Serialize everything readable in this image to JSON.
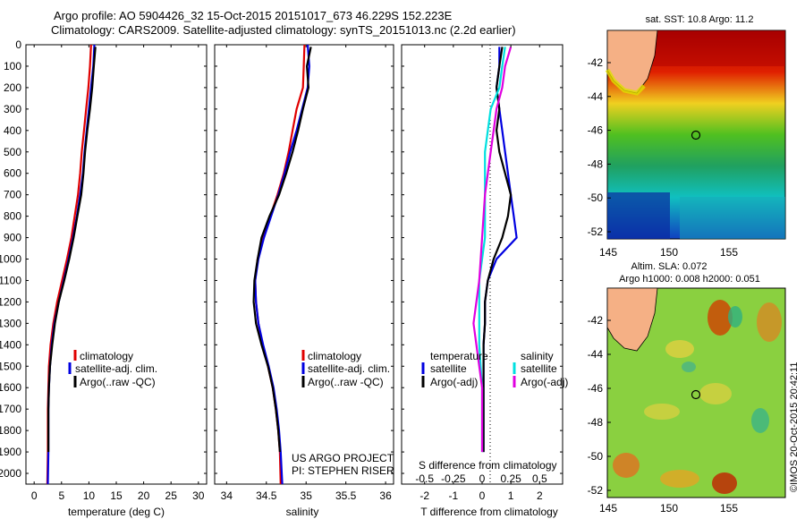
{
  "header": {
    "line1": "Argo profile: AO 5904426_32 15-Oct-2015 20151017_673 46.229S 152.223E",
    "line2": "Climatology: CARS2009. Satellite-adjusted climatology: synTS_20151013.nc (2.2d earlier)"
  },
  "depth_ticks": [
    "0",
    "100",
    "200",
    "300",
    "400",
    "500",
    "600",
    "700",
    "800",
    "900",
    "1000",
    "1100",
    "1200",
    "1300",
    "1400",
    "1500",
    "1600",
    "1700",
    "1800",
    "1900",
    "2000"
  ],
  "panels": {
    "temperature": {
      "xlabel": "temperature (deg C)",
      "xticks": [
        "0",
        "5",
        "10",
        "15",
        "20",
        "25",
        "30"
      ],
      "legend": [
        "climatology",
        "satellite-adj. clim.",
        "Argo(..raw -QC)"
      ]
    },
    "salinity": {
      "xlabel": "salinity",
      "xticks": [
        "34",
        "34.5",
        "35",
        "35.5",
        "36"
      ],
      "legend": [
        "climatology",
        "satellite-adj. clim.",
        "Argo(..raw -QC)"
      ],
      "credit1": "US ARGO PROJECT",
      "credit2": "PI: STEPHEN RISER"
    },
    "difference": {
      "xlabel": "T difference from climatology",
      "top_label": "S difference from climatology",
      "xticks": [
        "-2",
        "-1",
        "0",
        "1",
        "2"
      ],
      "sticks": [
        "-0.5",
        "-0.25",
        "0",
        "0.25",
        "0.5"
      ],
      "legend_t_title": "temperature",
      "legend_s_title": "salinity",
      "legend_t": [
        "satellite",
        "Argo(-adj)"
      ],
      "legend_s": [
        "satellite",
        "Argo(-adj)"
      ]
    }
  },
  "maps": {
    "sst_title": "sat. SST: 10.8 Argo: 11.2",
    "sla_title1": "Altim. SLA: 0.072",
    "sla_title2": "Argo h1000: 0.008 h2000: 0.051",
    "lat_ticks": [
      "-42",
      "-44",
      "-46",
      "-48",
      "-50",
      "-52"
    ],
    "lon_ticks": [
      "145",
      "150",
      "155"
    ],
    "stamp": "©IMOS 20-Oct-2015 20:42:11"
  },
  "colors": {
    "climatology": "#e00000",
    "satellite_adj": "#0000e0",
    "argo": "#000000",
    "salinity_sat": "#00e0e0",
    "salinity_argo": "#e000e0"
  },
  "chart_data": [
    {
      "type": "line",
      "xlabel": "temperature (deg C)",
      "ylabel": "",
      "xlim": [
        -1.5,
        31.5
      ],
      "ylim": [
        2050,
        0
      ],
      "series": [
        {
          "name": "climatology",
          "x": [
            10.4,
            10.2,
            9.9,
            9.5,
            9.1,
            8.7,
            8.4,
            8.0,
            7.4,
            6.8,
            6.0,
            5.1,
            4.2,
            3.5,
            3.0,
            2.7,
            2.6,
            2.5,
            2.5,
            2.5,
            2.4
          ],
          "y": [
            0,
            100,
            200,
            300,
            400,
            500,
            600,
            700,
            800,
            900,
            1000,
            1100,
            1200,
            1300,
            1400,
            1500,
            1600,
            1700,
            1800,
            1900,
            2050
          ]
        },
        {
          "name": "satellite-adj. clim.",
          "x": [
            11.0,
            10.8,
            10.4,
            10.0,
            9.6,
            9.2,
            8.9,
            8.4,
            7.8,
            7.1,
            6.3,
            5.4,
            4.5,
            3.7,
            3.2,
            2.9,
            2.7,
            2.6,
            2.6,
            2.6,
            2.5
          ],
          "y": [
            0,
            100,
            200,
            300,
            400,
            500,
            600,
            700,
            800,
            900,
            1000,
            1100,
            1200,
            1300,
            1400,
            1500,
            1600,
            1700,
            1800,
            1900,
            2050
          ]
        },
        {
          "name": "Argo(..raw -QC)",
          "x": [
            11.2,
            10.9,
            10.6,
            10.2,
            9.7,
            9.3,
            9.0,
            8.6,
            7.9,
            7.2,
            6.4,
            5.5,
            4.5,
            3.8,
            3.3,
            2.9,
            2.7,
            2.6,
            2.6,
            2.6
          ],
          "y": [
            10,
            100,
            200,
            300,
            400,
            500,
            600,
            700,
            800,
            900,
            1000,
            1100,
            1200,
            1300,
            1400,
            1500,
            1600,
            1700,
            1800,
            1900
          ]
        }
      ]
    },
    {
      "type": "line",
      "xlabel": "salinity",
      "ylabel": "",
      "xlim": [
        33.85,
        36.1
      ],
      "ylim": [
        2050,
        0
      ],
      "series": [
        {
          "name": "climatology",
          "x": [
            34.98,
            34.97,
            34.96,
            34.88,
            34.83,
            34.78,
            34.72,
            34.64,
            34.55,
            34.46,
            34.39,
            34.36,
            34.37,
            34.4,
            34.45,
            34.52,
            34.58,
            34.62,
            34.65,
            34.67,
            34.68
          ],
          "y": [
            0,
            100,
            200,
            300,
            400,
            500,
            600,
            700,
            800,
            900,
            1000,
            1100,
            1200,
            1300,
            1400,
            1500,
            1600,
            1700,
            1800,
            1900,
            2050
          ]
        },
        {
          "name": "satellite-adj. clim.",
          "x": [
            35.02,
            35.04,
            35.02,
            34.95,
            34.88,
            34.8,
            34.73,
            34.65,
            34.56,
            34.47,
            34.4,
            34.36,
            34.37,
            34.4,
            34.46,
            34.53,
            34.59,
            34.63,
            34.66,
            34.68,
            34.7
          ],
          "y": [
            0,
            100,
            200,
            300,
            400,
            500,
            600,
            700,
            800,
            900,
            1000,
            1100,
            1200,
            1300,
            1400,
            1500,
            1600,
            1700,
            1800,
            1900,
            2050
          ]
        },
        {
          "name": "Argo(..raw -QC)",
          "x": [
            35.06,
            35.01,
            35.03,
            34.96,
            34.9,
            34.83,
            34.75,
            34.66,
            34.54,
            34.44,
            34.39,
            34.35,
            34.34,
            34.37,
            34.44,
            34.52,
            34.58,
            34.62,
            34.65,
            34.67
          ],
          "y": [
            10,
            100,
            200,
            300,
            400,
            500,
            600,
            700,
            800,
            900,
            1000,
            1100,
            1200,
            1300,
            1400,
            1500,
            1600,
            1700,
            1800,
            1900
          ]
        }
      ]
    },
    {
      "type": "line",
      "xlabel": "T difference from climatology",
      "ylabel": "",
      "xlim": [
        -2.8,
        2.8
      ],
      "ylim": [
        2050,
        0
      ],
      "series": [
        {
          "name": "temperature satellite",
          "x": [
            0.6,
            0.6,
            0.5,
            0.6,
            0.7,
            0.8,
            0.9,
            1.0,
            1.1,
            1.2,
            0.5,
            0.2,
            0.1,
            0.1,
            0.05,
            0.05,
            0.05,
            0.05,
            0.05,
            0.05
          ],
          "y": [
            10,
            100,
            200,
            300,
            400,
            500,
            600,
            700,
            800,
            900,
            1000,
            1100,
            1200,
            1300,
            1400,
            1500,
            1600,
            1700,
            1800,
            1900
          ]
        },
        {
          "name": "temperature Argo(-adj)",
          "x": [
            0.7,
            0.6,
            0.5,
            0.6,
            0.5,
            0.6,
            0.8,
            1.0,
            0.9,
            0.7,
            0.4,
            0.2,
            0.1,
            0.1,
            0.05,
            0.05,
            0.05,
            0.05,
            0.05,
            0.05
          ],
          "y": [
            10,
            100,
            200,
            300,
            400,
            500,
            600,
            700,
            800,
            900,
            1000,
            1100,
            1200,
            1300,
            1400,
            1500,
            1600,
            1700,
            1800,
            1900
          ]
        },
        {
          "name": "salinity satellite",
          "x": [
            0.8,
            0.7,
            0.6,
            0.3,
            0.2,
            0.1,
            0.1,
            0.1,
            0.1,
            0.1,
            0.0,
            -0.1,
            -0.1,
            -0.1,
            -0.1,
            -0.05,
            0.0,
            0.0,
            0.0,
            0.0
          ],
          "y": [
            10,
            100,
            200,
            300,
            400,
            500,
            600,
            700,
            800,
            900,
            1000,
            1100,
            1200,
            1300,
            1400,
            1500,
            1600,
            1700,
            1800,
            1900
          ]
        },
        {
          "name": "salinity Argo(-adj)",
          "x": [
            1.0,
            0.8,
            0.7,
            0.5,
            0.4,
            0.3,
            0.2,
            0.1,
            0.05,
            0.0,
            -0.05,
            -0.1,
            -0.2,
            -0.3,
            -0.2,
            -0.1,
            0.0,
            0.0,
            0.0,
            0.0
          ],
          "y": [
            10,
            100,
            200,
            300,
            400,
            500,
            600,
            700,
            800,
            900,
            1000,
            1100,
            1200,
            1300,
            1400,
            1500,
            1600,
            1700,
            1800,
            1900
          ]
        }
      ]
    }
  ]
}
